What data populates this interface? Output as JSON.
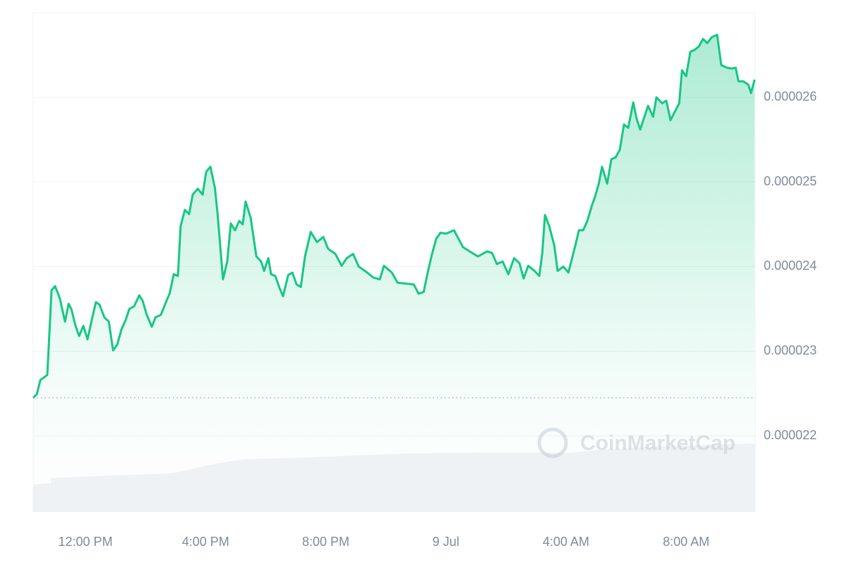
{
  "chart_data": {
    "type": "line",
    "color": "#16c784",
    "watermark": "CoinMarketCap",
    "xlim": [
      10.26,
      34.3
    ],
    "xticks": [
      {
        "value": 12,
        "label": "12:00 PM"
      },
      {
        "value": 16,
        "label": "4:00 PM"
      },
      {
        "value": 20,
        "label": "8:00 PM"
      },
      {
        "value": 24,
        "label": "9 Jul"
      },
      {
        "value": 28,
        "label": "4:00 AM"
      },
      {
        "value": 32,
        "label": "8:00 AM"
      }
    ],
    "ylim": [
      2.11e-05,
      2.7e-05
    ],
    "yticks": [
      2.2e-05,
      2.3e-05,
      2.4e-05,
      2.5e-05,
      2.6e-05
    ],
    "grid": true,
    "x": [
      10.26,
      10.38,
      10.5,
      10.73,
      10.87,
      10.99,
      11.15,
      11.32,
      11.44,
      11.53,
      11.67,
      11.79,
      11.93,
      12.07,
      12.21,
      12.35,
      12.47,
      12.63,
      12.78,
      12.92,
      13.06,
      13.2,
      13.34,
      13.46,
      13.62,
      13.79,
      13.9,
      14.04,
      14.21,
      14.33,
      14.51,
      14.68,
      14.8,
      14.94,
      15.08,
      15.17,
      15.31,
      15.45,
      15.57,
      15.74,
      15.9,
      16.02,
      16.16,
      16.31,
      16.4,
      16.58,
      16.72,
      16.84,
      16.98,
      17.12,
      17.24,
      17.33,
      17.5,
      17.69,
      17.85,
      17.95,
      18.09,
      18.18,
      18.32,
      18.46,
      18.58,
      18.75,
      18.89,
      19.03,
      19.17,
      19.31,
      19.5,
      19.71,
      19.92,
      20.08,
      20.32,
      20.53,
      20.7,
      20.91,
      21.1,
      21.38,
      21.59,
      21.8,
      21.94,
      22.2,
      22.39,
      22.65,
      22.93,
      23.09,
      23.26,
      23.4,
      23.54,
      23.68,
      23.82,
      24.01,
      24.27,
      24.57,
      24.79,
      25.07,
      25.37,
      25.54,
      25.7,
      25.89,
      26.08,
      26.27,
      26.45,
      26.59,
      26.74,
      26.95,
      27.11,
      27.21,
      27.3,
      27.44,
      27.61,
      27.72,
      27.91,
      28.08,
      28.31,
      28.43,
      28.57,
      28.71,
      28.85,
      28.97,
      29.09,
      29.2,
      29.37,
      29.51,
      29.65,
      29.79,
      29.93,
      30.07,
      30.24,
      30.35,
      30.47,
      30.61,
      30.73,
      30.9,
      31.01,
      31.2,
      31.34,
      31.48,
      31.62,
      31.77,
      31.86,
      32.0,
      32.14,
      32.28,
      32.42,
      32.56,
      32.7,
      32.85,
      33.03,
      33.17,
      33.36,
      33.53,
      33.65,
      33.74,
      33.9,
      34.07,
      34.16,
      34.28
    ],
    "values": [
      2.245e-05,
      2.249e-05,
      2.266e-05,
      2.272e-05,
      2.372e-05,
      2.377e-05,
      2.362e-05,
      2.335e-05,
      2.356e-05,
      2.35e-05,
      2.33e-05,
      2.318e-05,
      2.33e-05,
      2.314e-05,
      2.337e-05,
      2.358e-05,
      2.355e-05,
      2.34e-05,
      2.335e-05,
      2.301e-05,
      2.308e-05,
      2.326e-05,
      2.337e-05,
      2.35e-05,
      2.353e-05,
      2.366e-05,
      2.36e-05,
      2.343e-05,
      2.329e-05,
      2.34e-05,
      2.343e-05,
      2.358e-05,
      2.368e-05,
      2.391e-05,
      2.389e-05,
      2.448e-05,
      2.467e-05,
      2.462e-05,
      2.485e-05,
      2.492e-05,
      2.485e-05,
      2.512e-05,
      2.518e-05,
      2.493e-05,
      2.462e-05,
      2.385e-05,
      2.406e-05,
      2.451e-05,
      2.443e-05,
      2.454e-05,
      2.45e-05,
      2.477e-05,
      2.458e-05,
      2.412e-05,
      2.406e-05,
      2.395e-05,
      2.41e-05,
      2.391e-05,
      2.389e-05,
      2.375e-05,
      2.365e-05,
      2.39e-05,
      2.393e-05,
      2.379e-05,
      2.376e-05,
      2.412e-05,
      2.441e-05,
      2.429e-05,
      2.435e-05,
      2.421e-05,
      2.415e-05,
      2.401e-05,
      2.41e-05,
      2.415e-05,
      2.4e-05,
      2.393e-05,
      2.387e-05,
      2.385e-05,
      2.401e-05,
      2.393e-05,
      2.381e-05,
      2.38e-05,
      2.379e-05,
      2.368e-05,
      2.37e-05,
      2.394e-05,
      2.415e-05,
      2.433e-05,
      2.44e-05,
      2.439e-05,
      2.443e-05,
      2.423e-05,
      2.418e-05,
      2.412e-05,
      2.418e-05,
      2.416e-05,
      2.403e-05,
      2.406e-05,
      2.391e-05,
      2.41e-05,
      2.404e-05,
      2.386e-05,
      2.401e-05,
      2.395e-05,
      2.389e-05,
      2.416e-05,
      2.461e-05,
      2.448e-05,
      2.425e-05,
      2.395e-05,
      2.4e-05,
      2.393e-05,
      2.425e-05,
      2.443e-05,
      2.443e-05,
      2.454e-05,
      2.471e-05,
      2.483e-05,
      2.498e-05,
      2.518e-05,
      2.498e-05,
      2.527e-05,
      2.529e-05,
      2.538e-05,
      2.568e-05,
      2.564e-05,
      2.594e-05,
      2.575e-05,
      2.562e-05,
      2.577e-05,
      2.59e-05,
      2.577e-05,
      2.6e-05,
      2.593e-05,
      2.596e-05,
      2.573e-05,
      2.583e-05,
      2.593e-05,
      2.632e-05,
      2.625e-05,
      2.654e-05,
      2.656e-05,
      2.66e-05,
      2.669e-05,
      2.664e-05,
      2.671e-05,
      2.674e-05,
      2.638e-05,
      2.635e-05,
      2.634e-05,
      2.635e-05,
      2.619e-05,
      2.619e-05,
      2.615e-05,
      2.605e-05,
      2.621e-05
    ]
  }
}
